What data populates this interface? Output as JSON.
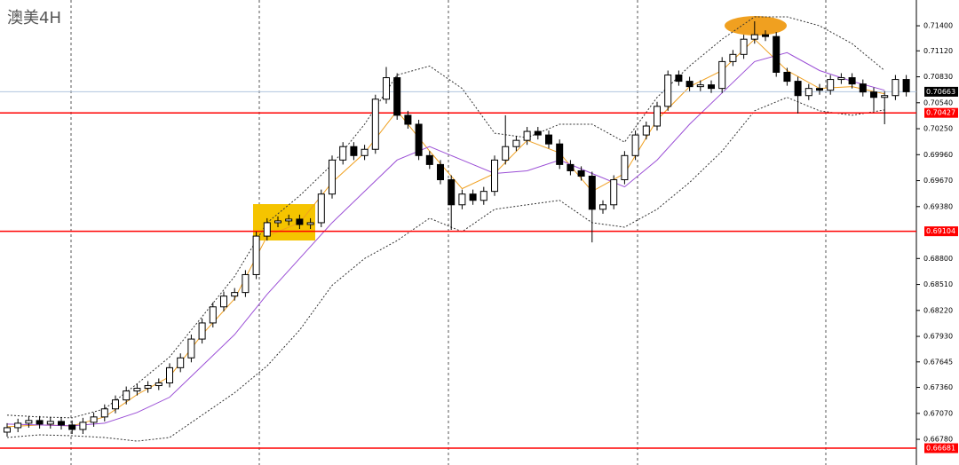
{
  "chart_data": {
    "type": "candlestick",
    "title": "澳美4H",
    "open": [
      0.6686,
      0.6691,
      0.6696,
      0.6699,
      0.6695,
      0.6698,
      0.6694,
      0.6689,
      0.6697,
      0.6703,
      0.6712,
      0.6722,
      0.6732,
      0.6735,
      0.6738,
      0.6741,
      0.6758,
      0.6769,
      0.679,
      0.6808,
      0.6826,
      0.6838,
      0.6842,
      0.6862,
      0.6905,
      0.692,
      0.6922,
      0.6924,
      0.6918,
      0.692,
      0.6952,
      0.699,
      0.7005,
      0.6995,
      0.7002,
      0.7058,
      0.7082,
      0.704,
      0.703,
      0.6995,
      0.6985,
      0.6968,
      0.694,
      0.6952,
      0.6945,
      0.6955,
      0.699,
      0.7005,
      0.7012,
      0.7022,
      0.7018,
      0.7008,
      0.6985,
      0.6978,
      0.6972,
      0.6935,
      0.694,
      0.6968,
      0.6995,
      0.7018,
      0.7028,
      0.705,
      0.7085,
      0.7078,
      0.7072,
      0.7074,
      0.707,
      0.71,
      0.7108,
      0.7125,
      0.713,
      0.7128,
      0.7088,
      0.7078,
      0.7062,
      0.707,
      0.7068,
      0.708,
      0.7082,
      0.7075,
      0.7066,
      0.706,
      0.7062,
      0.708
    ],
    "high": [
      0.6696,
      0.6701,
      0.6704,
      0.6704,
      0.6703,
      0.6703,
      0.6699,
      0.6702,
      0.6708,
      0.6717,
      0.6727,
      0.6737,
      0.674,
      0.6743,
      0.6746,
      0.6763,
      0.6774,
      0.6795,
      0.6813,
      0.6831,
      0.6843,
      0.6847,
      0.6867,
      0.691,
      0.6925,
      0.6927,
      0.6929,
      0.6929,
      0.6925,
      0.6957,
      0.6995,
      0.701,
      0.701,
      0.7007,
      0.7063,
      0.7094,
      0.7087,
      0.7045,
      0.7035,
      0.7,
      0.699,
      0.6973,
      0.6957,
      0.6957,
      0.696,
      0.6995,
      0.704,
      0.7017,
      0.7027,
      0.7027,
      0.7023,
      0.7013,
      0.699,
      0.6983,
      0.6977,
      0.6945,
      0.6973,
      0.7,
      0.7023,
      0.7033,
      0.7055,
      0.709,
      0.709,
      0.7083,
      0.7079,
      0.7079,
      0.7105,
      0.7113,
      0.713,
      0.7145,
      0.7135,
      0.7133,
      0.7093,
      0.7083,
      0.7075,
      0.7075,
      0.7085,
      0.7087,
      0.7087,
      0.708,
      0.7071,
      0.7067,
      0.7085,
      0.7085
    ],
    "low": [
      0.6681,
      0.6686,
      0.6691,
      0.669,
      0.669,
      0.6689,
      0.6684,
      0.6684,
      0.6692,
      0.6698,
      0.6707,
      0.6717,
      0.6727,
      0.673,
      0.6733,
      0.6736,
      0.6753,
      0.6764,
      0.6785,
      0.6803,
      0.6821,
      0.6833,
      0.6837,
      0.6857,
      0.69,
      0.6915,
      0.6917,
      0.6913,
      0.6913,
      0.6915,
      0.6947,
      0.6985,
      0.699,
      0.699,
      0.6997,
      0.7053,
      0.7035,
      0.7025,
      0.699,
      0.698,
      0.6963,
      0.6912,
      0.6935,
      0.694,
      0.694,
      0.695,
      0.6985,
      0.7,
      0.7007,
      0.7013,
      0.7003,
      0.698,
      0.6973,
      0.6967,
      0.6898,
      0.693,
      0.6935,
      0.6963,
      0.699,
      0.7013,
      0.7023,
      0.7045,
      0.7073,
      0.7067,
      0.7067,
      0.7065,
      0.7065,
      0.7095,
      0.7103,
      0.712,
      0.7123,
      0.7083,
      0.7073,
      0.7042,
      0.7057,
      0.7063,
      0.7063,
      0.7075,
      0.707,
      0.7061,
      0.7045,
      0.703,
      0.7057,
      0.7061
    ],
    "close": [
      0.6691,
      0.6696,
      0.6699,
      0.6695,
      0.6698,
      0.6694,
      0.6689,
      0.6697,
      0.6703,
      0.6712,
      0.6722,
      0.6732,
      0.6735,
      0.6738,
      0.6741,
      0.6758,
      0.6769,
      0.679,
      0.6808,
      0.6826,
      0.6838,
      0.6842,
      0.6862,
      0.6905,
      0.692,
      0.6922,
      0.6924,
      0.6918,
      0.692,
      0.6952,
      0.699,
      0.7005,
      0.6995,
      0.7002,
      0.7058,
      0.7082,
      0.704,
      0.703,
      0.6995,
      0.6985,
      0.6968,
      0.694,
      0.6952,
      0.6945,
      0.6955,
      0.699,
      0.7005,
      0.7012,
      0.7022,
      0.7018,
      0.7008,
      0.6985,
      0.6978,
      0.6972,
      0.6935,
      0.694,
      0.6968,
      0.6995,
      0.7018,
      0.7028,
      0.705,
      0.7085,
      0.7078,
      0.7072,
      0.7074,
      0.707,
      0.71,
      0.7108,
      0.7125,
      0.713,
      0.7128,
      0.7088,
      0.7078,
      0.7062,
      0.707,
      0.7068,
      0.708,
      0.7082,
      0.7075,
      0.7066,
      0.706,
      0.7062,
      0.708,
      0.70663
    ],
    "ylim": [
      0.66493,
      0.71688
    ],
    "yticks": [
      {
        "value": 0.714,
        "label": "0.71400"
      },
      {
        "value": 0.7112,
        "label": "0.71120"
      },
      {
        "value": 0.7083,
        "label": "0.70830"
      },
      {
        "value": 0.7054,
        "label": "0.70540"
      },
      {
        "value": 0.7025,
        "label": "0.70250"
      },
      {
        "value": 0.6996,
        "label": "0.69960"
      },
      {
        "value": 0.6967,
        "label": "0.69670"
      },
      {
        "value": 0.6938,
        "label": "0.69380"
      },
      {
        "value": 0.688,
        "label": "0.68800"
      },
      {
        "value": 0.6851,
        "label": "0.68510"
      },
      {
        "value": 0.6822,
        "label": "0.68220"
      },
      {
        "value": 0.6793,
        "label": "0.67930"
      },
      0.67645,
      {
        "value": 0.6736,
        "label": "0.67360"
      },
      {
        "value": 0.6707,
        "label": "0.67070"
      },
      {
        "value": 0.6678,
        "label": "0.66780"
      }
    ],
    "levels": [
      0.70427,
      0.69104,
      0.66681
    ],
    "level_color": "#ff0000",
    "current_price": 0.70663,
    "current_color": "#b0c4de",
    "bull_color": "#ffffff",
    "bear_color": "#000000",
    "indicator_x": [
      0,
      3,
      6,
      9,
      12,
      15,
      18,
      21,
      24,
      27,
      30,
      33,
      36,
      39,
      42,
      45,
      48,
      51,
      54,
      57,
      60,
      63,
      66,
      69,
      72,
      75,
      78,
      81
    ],
    "indicators": [
      {
        "color": "#f0a020",
        "dashed": false,
        "values": [
          0.6692,
          0.6694,
          0.6693,
          0.6703,
          0.6728,
          0.6748,
          0.6795,
          0.6835,
          0.6905,
          0.692,
          0.6965,
          0.6998,
          0.7045,
          0.7,
          0.6958,
          0.6975,
          0.7012,
          0.6998,
          0.6955,
          0.6975,
          0.7035,
          0.7072,
          0.709,
          0.7125,
          0.709,
          0.707,
          0.7072,
          0.7064
        ]
      },
      {
        "color": "#9b4fd6",
        "dashed": false,
        "values": [
          0.6695,
          0.6694,
          0.6693,
          0.6696,
          0.6708,
          0.6725,
          0.676,
          0.6795,
          0.684,
          0.688,
          0.692,
          0.6955,
          0.699,
          0.7005,
          0.699,
          0.6975,
          0.6978,
          0.699,
          0.6975,
          0.696,
          0.699,
          0.703,
          0.7065,
          0.71,
          0.711,
          0.709,
          0.7078,
          0.7068
        ]
      },
      {
        "color": "#333333",
        "dashed": true,
        "values": [
          0.6705,
          0.6703,
          0.6702,
          0.6712,
          0.674,
          0.677,
          0.6815,
          0.686,
          0.692,
          0.695,
          0.6985,
          0.703,
          0.7085,
          0.7095,
          0.707,
          0.702,
          0.7015,
          0.703,
          0.703,
          0.701,
          0.706,
          0.7095,
          0.7125,
          0.715,
          0.715,
          0.714,
          0.712,
          0.709
        ]
      },
      {
        "color": "#333333",
        "dashed": true,
        "values": [
          0.668,
          0.6683,
          0.6682,
          0.668,
          0.6676,
          0.668,
          0.6705,
          0.673,
          0.676,
          0.68,
          0.685,
          0.688,
          0.69,
          0.6925,
          0.691,
          0.6935,
          0.694,
          0.6945,
          0.692,
          0.6915,
          0.6935,
          0.6965,
          0.7,
          0.7045,
          0.706,
          0.7045,
          0.704,
          0.7046
        ]
      }
    ]
  }
}
